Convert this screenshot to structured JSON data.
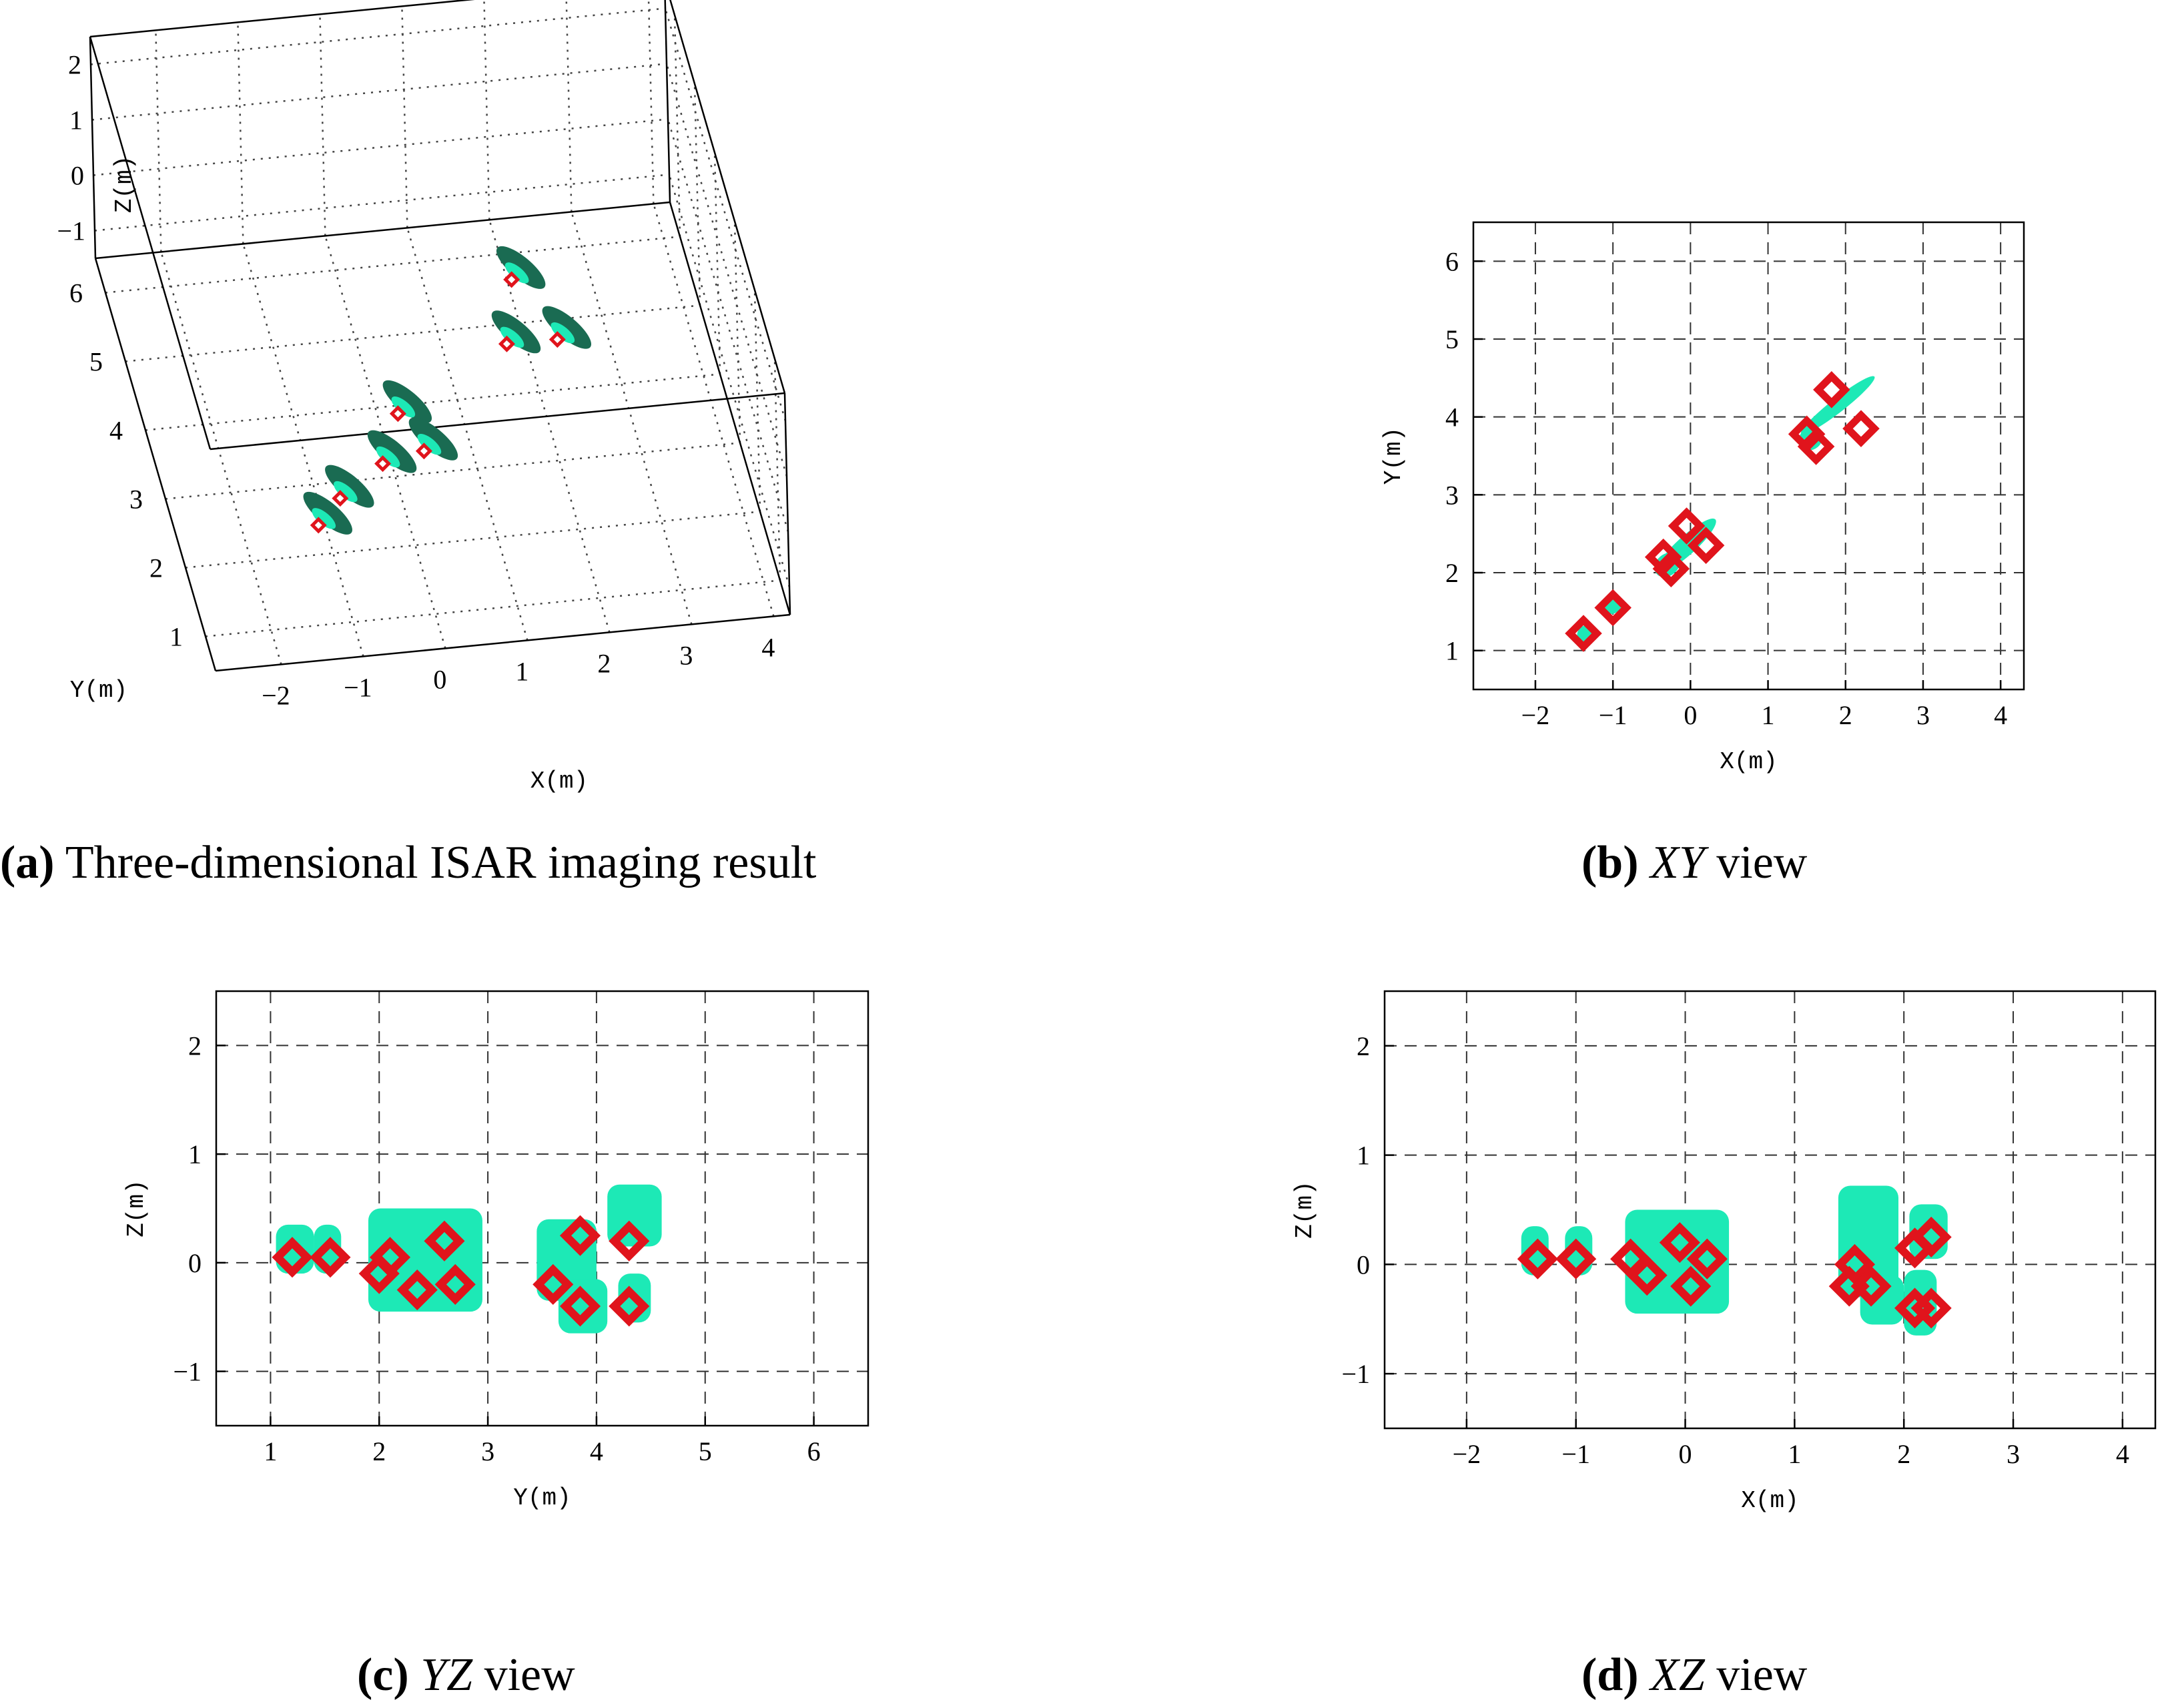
{
  "colors": {
    "target": "#1de9b6",
    "target_dark": "#1a6b52",
    "scatterer": "#e0141c",
    "grid": "#333333"
  },
  "chart_data": [
    {
      "panel": "a",
      "type": "scatter",
      "caption_label": "(a)",
      "caption_text": " Three-dimensional ISAR imaging result",
      "xlabel": "X(m)",
      "ylabel": "Y(m)",
      "zlabel": "Z(m)",
      "x_ticks": [
        "−2",
        "−1",
        "0",
        "1",
        "2",
        "3",
        "4"
      ],
      "y_ticks": [
        "1",
        "2",
        "3",
        "4",
        "5",
        "6"
      ],
      "z_ticks": [
        "2",
        "1",
        "0",
        "−1"
      ],
      "xlim": [
        -2.8,
        4.2
      ],
      "ylim": [
        0.5,
        6.5
      ],
      "zlim": [
        -1.5,
        2.5
      ],
      "points": [
        {
          "x": -1.35,
          "y": 1.2,
          "z": 0.05
        },
        {
          "x": -1.0,
          "y": 1.55,
          "z": 0.05
        },
        {
          "x": -0.35,
          "y": 2.1,
          "z": -0.1
        },
        {
          "x": -0.05,
          "y": 2.55,
          "z": 0.2
        },
        {
          "x": 0.2,
          "y": 2.3,
          "z": -0.2
        },
        {
          "x": 1.55,
          "y": 3.7,
          "z": -0.2
        },
        {
          "x": 1.75,
          "y": 4.25,
          "z": 0.25
        },
        {
          "x": 2.2,
          "y": 3.85,
          "z": -0.4
        }
      ]
    },
    {
      "panel": "b",
      "type": "scatter",
      "caption_label": "(b)",
      "caption_italic": "XY",
      "caption_text": " view",
      "xlabel": "X(m)",
      "ylabel": "Y(m)",
      "xlim": [
        -2.8,
        4.3
      ],
      "ylim": [
        0.5,
        6.5
      ],
      "x_ticks": [
        -2,
        -1,
        0,
        1,
        2,
        3,
        4
      ],
      "y_ticks": [
        1,
        2,
        3,
        4,
        5,
        6
      ],
      "blobs": [
        {
          "x": -1.35,
          "y": 1.22,
          "rx": 0.12,
          "ry": 0.1,
          "rot": -40
        },
        {
          "x": -1.0,
          "y": 1.58,
          "rx": 0.13,
          "ry": 0.1,
          "rot": -40
        },
        {
          "x": -0.05,
          "y": 2.35,
          "rx": 0.5,
          "ry": 0.12,
          "rot": -42
        },
        {
          "x": -0.3,
          "y": 2.1,
          "rx": 0.18,
          "ry": 0.14,
          "rot": -40
        },
        {
          "x": 1.9,
          "y": 4.15,
          "rx": 0.6,
          "ry": 0.09,
          "rot": -38
        },
        {
          "x": 1.55,
          "y": 3.72,
          "rx": 0.16,
          "ry": 0.14,
          "rot": -40
        }
      ],
      "scatterers": [
        {
          "x": -1.38,
          "y": 1.22
        },
        {
          "x": -1.0,
          "y": 1.55
        },
        {
          "x": -0.35,
          "y": 2.2
        },
        {
          "x": -0.25,
          "y": 2.05
        },
        {
          "x": -0.05,
          "y": 2.6
        },
        {
          "x": 0.2,
          "y": 2.35
        },
        {
          "x": 1.5,
          "y": 3.78
        },
        {
          "x": 1.62,
          "y": 3.62
        },
        {
          "x": 1.82,
          "y": 4.35
        },
        {
          "x": 2.2,
          "y": 3.85
        }
      ]
    },
    {
      "panel": "c",
      "type": "scatter",
      "caption_label": "(c)",
      "caption_italic": "YZ",
      "caption_text": " view",
      "xlabel": "Y(m)",
      "ylabel": "Z(m)",
      "xlim": [
        0.5,
        6.5
      ],
      "ylim": [
        -1.5,
        2.5
      ],
      "x_ticks": [
        1,
        2,
        3,
        4,
        5,
        6
      ],
      "y_ticks": [
        -1,
        0,
        1,
        2
      ],
      "rects": [
        {
          "x0": 1.05,
          "x1": 1.4,
          "y0": -0.1,
          "y1": 0.35
        },
        {
          "x0": 1.4,
          "x1": 1.65,
          "y0": -0.1,
          "y1": 0.35
        },
        {
          "x0": 1.9,
          "x1": 2.95,
          "y0": -0.45,
          "y1": 0.5
        },
        {
          "x0": 3.45,
          "x1": 4.0,
          "y0": -0.35,
          "y1": 0.4
        },
        {
          "x0": 3.65,
          "x1": 4.1,
          "y0": -0.65,
          "y1": -0.15
        },
        {
          "x0": 4.1,
          "x1": 4.6,
          "y0": 0.15,
          "y1": 0.72
        },
        {
          "x0": 4.2,
          "x1": 4.5,
          "y0": -0.55,
          "y1": -0.1
        }
      ],
      "scatterers": [
        {
          "x": 1.2,
          "y": 0.05
        },
        {
          "x": 1.55,
          "y": 0.05
        },
        {
          "x": 2.0,
          "y": -0.1
        },
        {
          "x": 2.1,
          "y": 0.05
        },
        {
          "x": 2.6,
          "y": 0.2
        },
        {
          "x": 2.7,
          "y": -0.2
        },
        {
          "x": 2.35,
          "y": -0.25
        },
        {
          "x": 3.6,
          "y": -0.2
        },
        {
          "x": 3.85,
          "y": 0.25
        },
        {
          "x": 3.85,
          "y": -0.4
        },
        {
          "x": 4.3,
          "y": 0.2
        },
        {
          "x": 4.3,
          "y": -0.4
        }
      ]
    },
    {
      "panel": "d",
      "type": "scatter",
      "caption_label": "(d)",
      "caption_italic": "XZ",
      "caption_text": " view",
      "xlabel": "X(m)",
      "ylabel": "Z(m)",
      "xlim": [
        -2.75,
        4.3
      ],
      "ylim": [
        -1.5,
        2.5
      ],
      "x_ticks": [
        -2,
        -1,
        0,
        1,
        2,
        3,
        4
      ],
      "y_ticks": [
        -1,
        0,
        1,
        2
      ],
      "rects": [
        {
          "x0": -1.5,
          "x1": -1.25,
          "y0": -0.1,
          "y1": 0.35
        },
        {
          "x0": -1.1,
          "x1": -0.85,
          "y0": -0.1,
          "y1": 0.35
        },
        {
          "x0": -0.55,
          "x1": 0.4,
          "y0": -0.45,
          "y1": 0.5
        },
        {
          "x0": 1.4,
          "x1": 1.95,
          "y0": -0.3,
          "y1": 0.72
        },
        {
          "x0": 1.6,
          "x1": 2.0,
          "y0": -0.55,
          "y1": -0.1
        },
        {
          "x0": 2.0,
          "x1": 2.3,
          "y0": -0.65,
          "y1": -0.05
        },
        {
          "x0": 2.05,
          "x1": 2.4,
          "y0": 0.05,
          "y1": 0.55
        }
      ],
      "scatterers": [
        {
          "x": -1.35,
          "y": 0.05
        },
        {
          "x": -1.0,
          "y": 0.05
        },
        {
          "x": -0.5,
          "y": 0.05
        },
        {
          "x": -0.35,
          "y": -0.1
        },
        {
          "x": -0.05,
          "y": 0.2
        },
        {
          "x": 0.05,
          "y": -0.2
        },
        {
          "x": 0.2,
          "y": 0.05
        },
        {
          "x": 1.5,
          "y": -0.2
        },
        {
          "x": 1.55,
          "y": 0.0
        },
        {
          "x": 1.7,
          "y": -0.2
        },
        {
          "x": 2.1,
          "y": -0.4
        },
        {
          "x": 2.1,
          "y": 0.15
        },
        {
          "x": 2.25,
          "y": 0.25
        },
        {
          "x": 2.25,
          "y": -0.4
        }
      ]
    }
  ]
}
